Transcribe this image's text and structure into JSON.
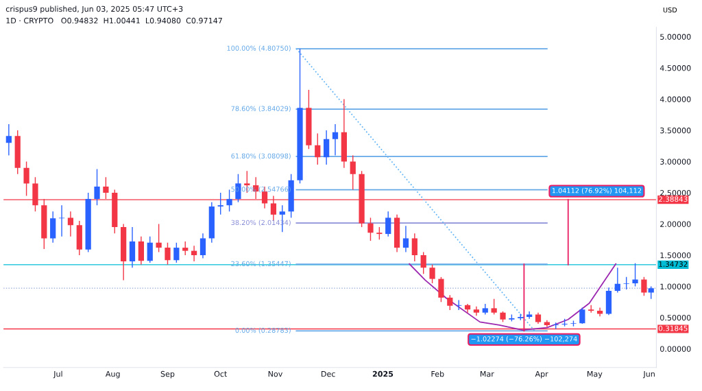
{
  "chart_data": {
    "type": "candlestick",
    "ylabel": "USD",
    "annotations": [
      "crispus9 published, Jun 03, 2025 05:47 UTC+3",
      "1D · CRYPTO   O0.94832  H1.00441  L0.94080  C0.97147"
    ],
    "x": [
      "2024-06-03",
      "2024-06-08",
      "2024-06-13",
      "2024-06-18",
      "2024-06-23",
      "2024-06-28",
      "2024-07-03",
      "2024-07-08",
      "2024-07-13",
      "2024-07-18",
      "2024-07-23",
      "2024-07-28",
      "2024-08-02",
      "2024-08-07",
      "2024-08-12",
      "2024-08-17",
      "2024-08-22",
      "2024-08-27",
      "2024-09-01",
      "2024-09-06",
      "2024-09-11",
      "2024-09-16",
      "2024-09-21",
      "2024-09-26",
      "2024-10-01",
      "2024-10-06",
      "2024-10-11",
      "2024-10-16",
      "2024-10-21",
      "2024-10-26",
      "2024-10-31",
      "2024-11-05",
      "2024-11-10",
      "2024-11-15",
      "2024-11-20",
      "2024-11-25",
      "2024-11-30",
      "2024-12-05",
      "2024-12-10",
      "2024-12-15",
      "2024-12-20",
      "2024-12-25",
      "2024-12-30",
      "2025-01-04",
      "2025-01-09",
      "2025-01-14",
      "2025-01-19",
      "2025-01-24",
      "2025-01-29",
      "2025-02-03",
      "2025-02-08",
      "2025-02-13",
      "2025-02-18",
      "2025-02-23",
      "2025-02-28",
      "2025-03-05",
      "2025-03-10",
      "2025-03-15",
      "2025-03-20",
      "2025-03-25",
      "2025-03-30",
      "2025-04-04",
      "2025-04-09",
      "2025-04-14",
      "2025-04-19",
      "2025-04-24",
      "2025-04-29",
      "2025-05-04",
      "2025-05-09",
      "2025-05-14",
      "2025-05-19",
      "2025-05-24",
      "2025-05-29",
      "2025-06-02"
    ],
    "ohlc": [
      [
        3.3,
        3.6,
        3.1,
        3.41
      ],
      [
        3.41,
        3.5,
        2.8,
        2.9
      ],
      [
        2.9,
        3.0,
        2.45,
        2.65
      ],
      [
        2.65,
        2.75,
        2.2,
        2.3
      ],
      [
        2.3,
        2.4,
        1.6,
        1.77
      ],
      [
        1.77,
        2.2,
        1.7,
        2.09
      ],
      [
        2.09,
        2.3,
        1.8,
        2.1
      ],
      [
        2.1,
        2.2,
        1.8,
        1.98
      ],
      [
        1.98,
        2.05,
        1.5,
        1.59
      ],
      [
        1.59,
        2.5,
        1.55,
        2.4
      ],
      [
        2.4,
        2.88,
        2.3,
        2.6
      ],
      [
        2.6,
        2.75,
        2.4,
        2.5
      ],
      [
        2.5,
        2.55,
        1.85,
        1.95
      ],
      [
        1.95,
        2.0,
        1.1,
        1.4
      ],
      [
        1.4,
        1.95,
        1.3,
        1.72
      ],
      [
        1.72,
        1.8,
        1.35,
        1.41
      ],
      [
        1.41,
        1.8,
        1.38,
        1.7
      ],
      [
        1.7,
        2.0,
        1.55,
        1.62
      ],
      [
        1.62,
        1.7,
        1.35,
        1.42
      ],
      [
        1.42,
        1.7,
        1.38,
        1.62
      ],
      [
        1.62,
        1.72,
        1.5,
        1.57
      ],
      [
        1.57,
        1.65,
        1.4,
        1.5
      ],
      [
        1.5,
        1.85,
        1.45,
        1.77
      ],
      [
        1.77,
        2.35,
        1.7,
        2.28
      ],
      [
        2.28,
        2.5,
        2.15,
        2.3
      ],
      [
        2.3,
        2.55,
        2.2,
        2.4
      ],
      [
        2.4,
        2.8,
        2.35,
        2.65
      ],
      [
        2.65,
        2.85,
        2.5,
        2.62
      ],
      [
        2.62,
        2.75,
        2.4,
        2.52
      ],
      [
        2.52,
        2.6,
        2.25,
        2.33
      ],
      [
        2.33,
        2.45,
        2.05,
        2.15
      ],
      [
        2.15,
        2.3,
        1.87,
        2.2
      ],
      [
        2.2,
        2.8,
        2.1,
        2.7
      ],
      [
        2.7,
        4.8075,
        2.65,
        3.86
      ],
      [
        3.86,
        4.15,
        3.2,
        3.26
      ],
      [
        3.26,
        3.45,
        2.95,
        3.07
      ],
      [
        3.07,
        3.5,
        2.95,
        3.36
      ],
      [
        3.36,
        3.6,
        3.1,
        3.47
      ],
      [
        3.47,
        4.0,
        2.9,
        3.0
      ],
      [
        3.0,
        3.1,
        2.55,
        2.8
      ],
      [
        2.8,
        2.85,
        1.95,
        2.01
      ],
      [
        2.01,
        2.1,
        1.73,
        1.86
      ],
      [
        1.86,
        1.95,
        1.75,
        1.84
      ],
      [
        1.84,
        2.2,
        1.8,
        2.1
      ],
      [
        2.1,
        2.15,
        1.55,
        1.62
      ],
      [
        1.62,
        1.97,
        1.55,
        1.77
      ],
      [
        1.77,
        1.85,
        1.4,
        1.5
      ],
      [
        1.5,
        1.55,
        1.2,
        1.3
      ],
      [
        1.3,
        1.35,
        1.05,
        1.12
      ],
      [
        1.12,
        1.15,
        0.75,
        0.82
      ],
      [
        0.82,
        0.86,
        0.62,
        0.69
      ],
      [
        0.69,
        0.78,
        0.62,
        0.7
      ],
      [
        0.7,
        0.72,
        0.58,
        0.63
      ],
      [
        0.63,
        0.68,
        0.53,
        0.58
      ],
      [
        0.58,
        0.72,
        0.55,
        0.65
      ],
      [
        0.65,
        0.8,
        0.55,
        0.58
      ],
      [
        0.58,
        0.6,
        0.43,
        0.47
      ],
      [
        0.47,
        0.55,
        0.44,
        0.49
      ],
      [
        0.49,
        0.56,
        0.46,
        0.51
      ],
      [
        0.51,
        0.6,
        0.48,
        0.55
      ],
      [
        0.55,
        0.58,
        0.4,
        0.43
      ],
      [
        0.43,
        0.46,
        0.35,
        0.38
      ],
      [
        0.38,
        0.42,
        0.32,
        0.39
      ],
      [
        0.39,
        0.48,
        0.36,
        0.4
      ],
      [
        0.4,
        0.45,
        0.36,
        0.41
      ],
      [
        0.41,
        0.66,
        0.4,
        0.63
      ],
      [
        0.63,
        0.7,
        0.58,
        0.61
      ],
      [
        0.61,
        0.66,
        0.52,
        0.56
      ],
      [
        0.56,
        0.98,
        0.54,
        0.93
      ],
      [
        0.93,
        1.3,
        0.9,
        1.04
      ],
      [
        1.04,
        1.15,
        0.95,
        1.05
      ],
      [
        1.05,
        1.37,
        1.0,
        1.11
      ],
      [
        1.11,
        1.15,
        0.85,
        0.9
      ],
      [
        0.9,
        1.0,
        0.8,
        0.97
      ]
    ],
    "series": [
      {
        "type": "line",
        "name": "100.00% (4.80750)",
        "color": "#64a8e8",
        "x": [
          "2024-11-13",
          "2025-04-04"
        ],
        "values": [
          4.8075,
          4.8075
        ]
      },
      {
        "type": "line",
        "name": "78.60% (3.84029)",
        "color": "#64a8e8",
        "x": [
          "2024-11-13",
          "2025-04-04"
        ],
        "values": [
          3.84029,
          3.84029
        ]
      },
      {
        "type": "line",
        "name": "61.80% (3.08098)",
        "color": "#64a8e8",
        "x": [
          "2024-11-13",
          "2025-04-04"
        ],
        "values": [
          3.08098,
          3.08098
        ]
      },
      {
        "type": "line",
        "name": "50.00% (2.54766)",
        "color": "#64a8e8",
        "x": [
          "2024-11-13",
          "2025-04-04"
        ],
        "values": [
          2.54766,
          2.54766
        ]
      },
      {
        "type": "line",
        "name": "38.20% (2.01434)",
        "color": "#8a8fd8",
        "x": [
          "2024-11-13",
          "2025-04-04"
        ],
        "values": [
          2.01434,
          2.01434
        ]
      },
      {
        "type": "line",
        "name": "23.60% (1.35447)",
        "color": "#64a8e8",
        "x": [
          "2024-11-13",
          "2025-04-04"
        ],
        "values": [
          1.35447,
          1.35447
        ]
      },
      {
        "type": "line",
        "name": "0.00% (0.28783)",
        "color": "#64a8e8",
        "x": [
          "2024-11-13",
          "2025-04-04"
        ],
        "values": [
          0.28783,
          0.28783
        ]
      },
      {
        "type": "line",
        "color": "#64b5f6",
        "line_style": "dotted",
        "x": [
          "2024-11-13",
          "2025-03-28"
        ],
        "values": [
          4.8075,
          0.28783
        ]
      },
      {
        "type": "line",
        "color": "#9c27b0",
        "x": [
          "2025-01-16",
          "2025-01-25",
          "2025-02-06",
          "2025-02-25",
          "2025-03-08",
          "2025-03-21",
          "2025-04-04",
          "2025-04-16",
          "2025-04-28",
          "2025-05-13"
        ],
        "values": [
          1.36,
          1.1,
          0.81,
          0.43,
          0.38,
          0.3,
          0.34,
          0.47,
          0.73,
          1.36
        ]
      },
      {
        "type": "line",
        "name": "−1.02274 (−76.26%) −102,274",
        "color": "#e91e63",
        "x": [
          "2025-03-22",
          "2025-03-22"
        ],
        "values": [
          1.35447,
          0.28783
        ]
      },
      {
        "type": "line",
        "name": "1.04112 (76.92%) 104,112",
        "color": "#e91e63",
        "x": [
          "2025-04-16",
          "2025-04-16"
        ],
        "values": [
          1.34732,
          2.38843
        ]
      }
    ],
    "ref_lines": [
      {
        "axis": "y",
        "value": 2.38843,
        "label": "2.38843",
        "color": "#f23645"
      },
      {
        "axis": "y",
        "value": 1.34732,
        "label": "1.34732",
        "color": "#00bcd4"
      },
      {
        "axis": "y",
        "value": 0.31845,
        "label": "0.31845",
        "color": "#f23645"
      },
      {
        "axis": "y",
        "value": 0.97147,
        "label": null,
        "color": "#90a4d4",
        "line_style": "dotted"
      }
    ],
    "xlim": [
      "2024-05-31",
      "2025-06-05"
    ],
    "xticks": [
      {
        "value": "2024-07-01",
        "label": "Jul"
      },
      {
        "value": "2024-08-01",
        "label": "Aug"
      },
      {
        "value": "2024-09-01",
        "label": "Sep"
      },
      {
        "value": "2024-10-01",
        "label": "Oct"
      },
      {
        "value": "2024-11-01",
        "label": "Nov"
      },
      {
        "value": "2024-12-01",
        "label": "Dec"
      },
      {
        "value": "2025-01-01",
        "label": "2025"
      },
      {
        "value": "2025-02-01",
        "label": "Feb"
      },
      {
        "value": "2025-03-01",
        "label": "Mar"
      },
      {
        "value": "2025-04-01",
        "label": "Apr"
      },
      {
        "value": "2025-05-01",
        "label": "May"
      },
      {
        "value": "2025-06-01",
        "label": "Jun"
      }
    ],
    "ylim": [
      -0.3,
      5.15
    ],
    "yticks": [
      {
        "value": 0,
        "label": "0.00000"
      },
      {
        "value": 0.5,
        "label": "0.50000"
      },
      {
        "value": 1,
        "label": "1.00000"
      },
      {
        "value": 1.5,
        "label": "1.50000"
      },
      {
        "value": 2,
        "label": "2.00000"
      },
      {
        "value": 2.5,
        "label": "2.50000"
      },
      {
        "value": 3,
        "label": "3.00000"
      },
      {
        "value": 3.5,
        "label": "3.50000"
      },
      {
        "value": 4,
        "label": "4.00000"
      },
      {
        "value": 4.5,
        "label": "4.50000"
      },
      {
        "value": 5,
        "label": "5.00000"
      }
    ],
    "grid": false,
    "legend": false
  }
}
